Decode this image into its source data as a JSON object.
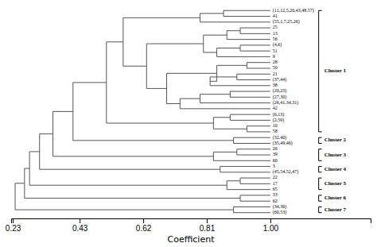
{
  "chart_data": {
    "type": "dendrogram",
    "xlabel": "Coefficient",
    "xlim": [
      0.225,
      1.3
    ],
    "xticks": [
      0.23,
      0.43,
      0.62,
      0.81,
      {
        "value": 1.0,
        "label": "1.00"
      }
    ],
    "color": "#555555",
    "leaf_value": 1.0,
    "leaf_labels": [
      "(11,12,5,20,43,48,57)",
      "41",
      "(55,1,7,25,26)",
      "25",
      "13",
      "56",
      "(4,6)",
      "51",
      "9",
      "28",
      "50",
      "21",
      "(37,44)",
      "38",
      "(20,23)",
      "(27,30)",
      "(26,41,34,31)",
      "42",
      "(6,13)",
      "(2,59)",
      "10",
      "58",
      "(32,40)",
      "(35,49,46)",
      "26",
      "39",
      "60",
      "3",
      "(45,54,52,47)",
      "22",
      "17",
      "65",
      "33",
      "62",
      "(34,36)",
      "(60,53)"
    ],
    "tree": {
      "value": 0.237,
      "children": [
        {
          "value": 0.265,
          "children": [
            {
              "value": 0.28,
              "children": [
                {
                  "value": 0.31,
                  "children": [
                    {
                      "value": 0.35,
                      "children": [
                        {
                          "value": 0.41,
                          "children": [
                            {
                              "value": 0.51,
                              "children": [
                                {
                                  "value": 0.56,
                                  "children": [
                                    {
                                      "value": 0.79,
                                      "children": [
                                        {
                                          "value": 0.86,
                                          "children": [
                                            0,
                                            1
                                          ]
                                        },
                                        2
                                      ]
                                    },
                                    {
                                      "value": 0.63,
                                      "children": [
                                        {
                                          "value": 0.8,
                                          "children": [
                                            {
                                              "value": 0.87,
                                              "children": [
                                                {
                                                  "value": 0.91,
                                                  "children": [
                                                    3,
                                                    4
                                                  ]
                                                },
                                                5
                                              ]
                                            },
                                            {
                                              "value": 0.84,
                                              "children": [
                                                {
                                                  "value": 0.91,
                                                  "children": [
                                                    6,
                                                    7
                                                  ]
                                                },
                                                8
                                              ]
                                            }
                                          ]
                                        },
                                        {
                                          "value": 0.69,
                                          "children": [
                                            {
                                              "value": 0.84,
                                              "children": [
                                                {
                                                  "value": 0.93,
                                                  "children": [
                                                    9,
                                                    10
                                                  ]
                                                },
                                                {
                                                  "value": 0.82,
                                                  "children": [
                                                    {
                                                      "value": 0.9,
                                                      "children": [
                                                        11,
                                                        12
                                                      ]
                                                    },
                                                    13
                                                  ]
                                                }
                                              ]
                                            },
                                            {
                                              "value": 0.73,
                                              "children": [
                                                {
                                                  "value": 0.79,
                                                  "children": [
                                                    {
                                                      "value": 0.88,
                                                      "children": [
                                                        14,
                                                        15
                                                      ]
                                                    },
                                                    16
                                                  ]
                                                },
                                                17
                                              ]
                                            }
                                          ]
                                        }
                                      ]
                                    }
                                  ]
                                },
                                {
                                  "value": 0.83,
                                  "children": [
                                    {
                                      "value": 0.88,
                                      "children": [
                                        18,
                                        19
                                      ]
                                    },
                                    {
                                      "value": 0.93,
                                      "children": [
                                        20,
                                        21
                                      ]
                                    }
                                  ]
                                }
                              ]
                            },
                            {
                              "value": 0.89,
                              "children": [
                                22,
                                23
                              ]
                            }
                          ]
                        },
                        {
                          "value": 0.83,
                          "children": [
                            {
                              "value": 0.9,
                              "children": [
                                24,
                                25
                              ]
                            },
                            26
                          ]
                        }
                      ]
                    },
                    {
                      "value": 0.85,
                      "children": [
                        27,
                        28
                      ]
                    }
                  ]
                },
                {
                  "value": 0.87,
                  "children": [
                    {
                      "value": 0.91,
                      "children": [
                        29,
                        30
                      ]
                    },
                    31
                  ]
                }
              ]
            },
            {
              "value": 0.91,
              "children": [
                32,
                33
              ]
            }
          ]
        },
        {
          "value": 0.89,
          "children": [
            34,
            35
          ]
        }
      ]
    },
    "clusters": [
      {
        "label": "Cluster 1",
        "leaves": [
          0,
          21
        ]
      },
      {
        "label": "Cluster 2",
        "leaves": [
          22,
          23
        ]
      },
      {
        "label": "Cluster 3",
        "leaves": [
          24,
          26
        ]
      },
      {
        "label": "Cluster 4",
        "leaves": [
          27,
          28
        ]
      },
      {
        "label": "Cluster 5",
        "leaves": [
          29,
          31
        ]
      },
      {
        "label": "Cluster 6",
        "leaves": [
          32,
          33
        ]
      },
      {
        "label": "Cluster 7",
        "leaves": [
          34,
          35
        ]
      }
    ]
  }
}
